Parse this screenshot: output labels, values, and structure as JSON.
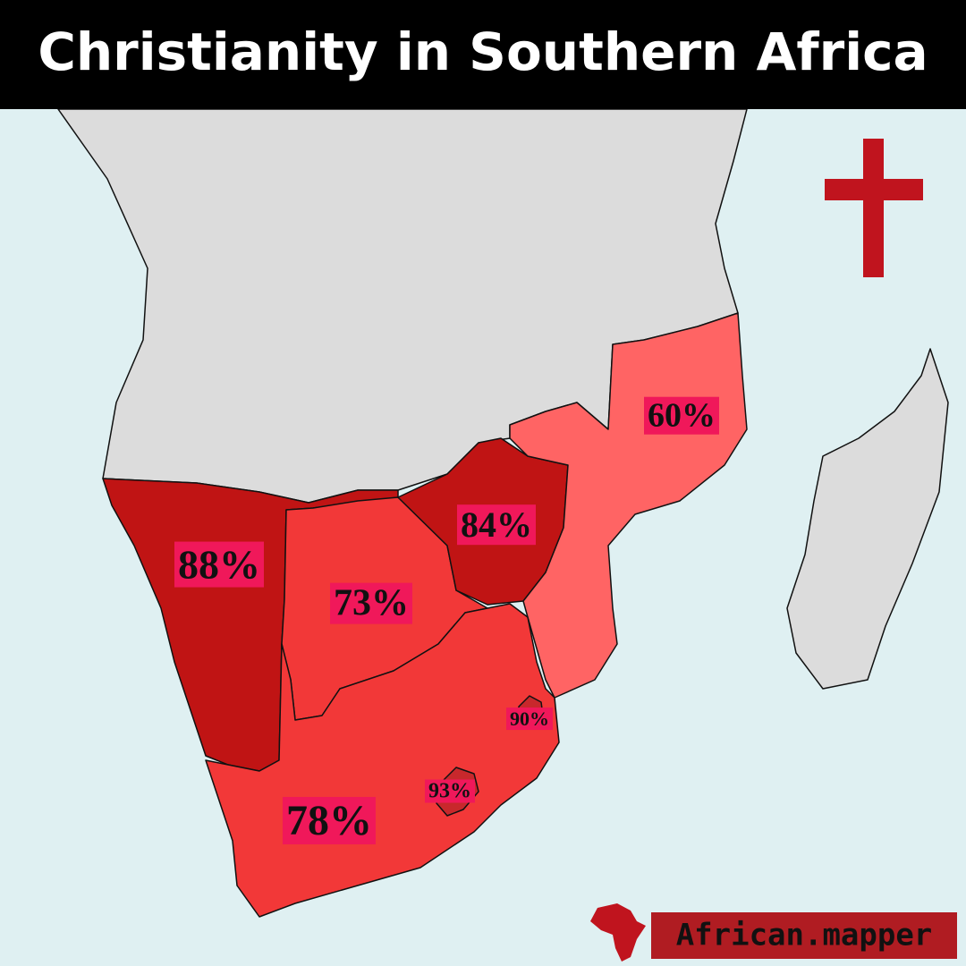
{
  "title": "Christianity in Southern Africa",
  "regions": [
    {
      "label": "88%",
      "color": "#c01414"
    },
    {
      "label": "73%",
      "color": "#f23838"
    },
    {
      "label": "84%",
      "color": "#c01414"
    },
    {
      "label": "60%",
      "color": "#ff6464"
    },
    {
      "label": "78%",
      "color": "#f23838"
    },
    {
      "label": "90%",
      "color": "#c8282c"
    },
    {
      "label": "93%",
      "color": "#c8282c"
    }
  ],
  "credit": "African.mapper"
}
